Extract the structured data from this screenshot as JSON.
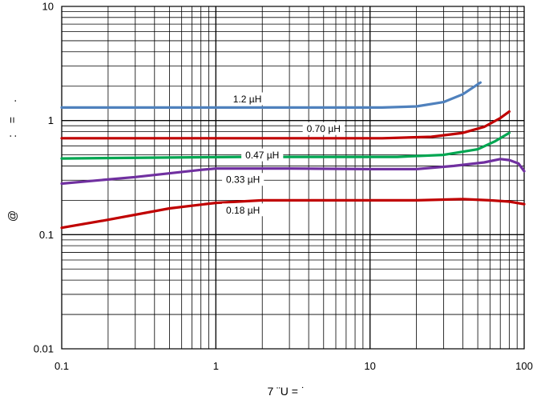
{
  "chart_data": {
    "type": "line",
    "xscale": "log",
    "yscale": "log",
    "xlim": [
      0.1,
      100
    ],
    "ylim": [
      0.01,
      10
    ],
    "grid": true,
    "xticks": [
      "0.1",
      "1",
      "10",
      "100"
    ],
    "yticks": [
      "0.01",
      "0.1",
      "1",
      "10"
    ],
    "xlabel": "7          ¨U =  ˙",
    "ylabel_marks": [
      ".",
      "=",
      ":",
      "@"
    ],
    "series": [
      {
        "name": "1.2 µH",
        "color": "#4f81bd",
        "label_at": [
          1.6,
          1.55
        ],
        "points": [
          [
            0.1,
            1.3
          ],
          [
            1,
            1.3
          ],
          [
            12,
            1.3
          ],
          [
            20,
            1.33
          ],
          [
            30,
            1.45
          ],
          [
            40,
            1.7
          ],
          [
            52,
            2.15
          ]
        ]
      },
      {
        "name": "0.70 µH",
        "color": "#c00000",
        "label_at": [
          5.0,
          0.85
        ],
        "points": [
          [
            0.1,
            0.7
          ],
          [
            1,
            0.7
          ],
          [
            12,
            0.7
          ],
          [
            25,
            0.72
          ],
          [
            40,
            0.78
          ],
          [
            55,
            0.88
          ],
          [
            70,
            1.05
          ],
          [
            80,
            1.2
          ]
        ]
      },
      {
        "name": "0.47 µH",
        "color": "#00a651",
        "label_at": [
          2.0,
          0.5
        ],
        "points": [
          [
            0.1,
            0.465
          ],
          [
            1.5,
            0.48
          ],
          [
            3,
            0.48
          ],
          [
            15,
            0.48
          ],
          [
            30,
            0.5
          ],
          [
            50,
            0.56
          ],
          [
            65,
            0.66
          ],
          [
            80,
            0.78
          ]
        ]
      },
      {
        "name": "0.33 µH",
        "color": "#7030a0",
        "label_at": [
          1.5,
          0.305
        ],
        "points": [
          [
            0.1,
            0.28
          ],
          [
            0.3,
            0.32
          ],
          [
            0.8,
            0.37
          ],
          [
            1,
            0.38
          ],
          [
            3,
            0.38
          ],
          [
            10,
            0.375
          ],
          [
            20,
            0.375
          ],
          [
            35,
            0.4
          ],
          [
            55,
            0.43
          ],
          [
            70,
            0.46
          ],
          [
            80,
            0.45
          ],
          [
            92,
            0.42
          ],
          [
            100,
            0.36
          ]
        ]
      },
      {
        "name": "0.18 µH",
        "color": "#c00000",
        "label_at": [
          1.5,
          0.165
        ],
        "points": [
          [
            0.1,
            0.115
          ],
          [
            0.2,
            0.135
          ],
          [
            0.5,
            0.17
          ],
          [
            1,
            0.19
          ],
          [
            2,
            0.2
          ],
          [
            10,
            0.2
          ],
          [
            20,
            0.2
          ],
          [
            40,
            0.205
          ],
          [
            60,
            0.2
          ],
          [
            80,
            0.195
          ],
          [
            100,
            0.185
          ]
        ]
      }
    ]
  }
}
